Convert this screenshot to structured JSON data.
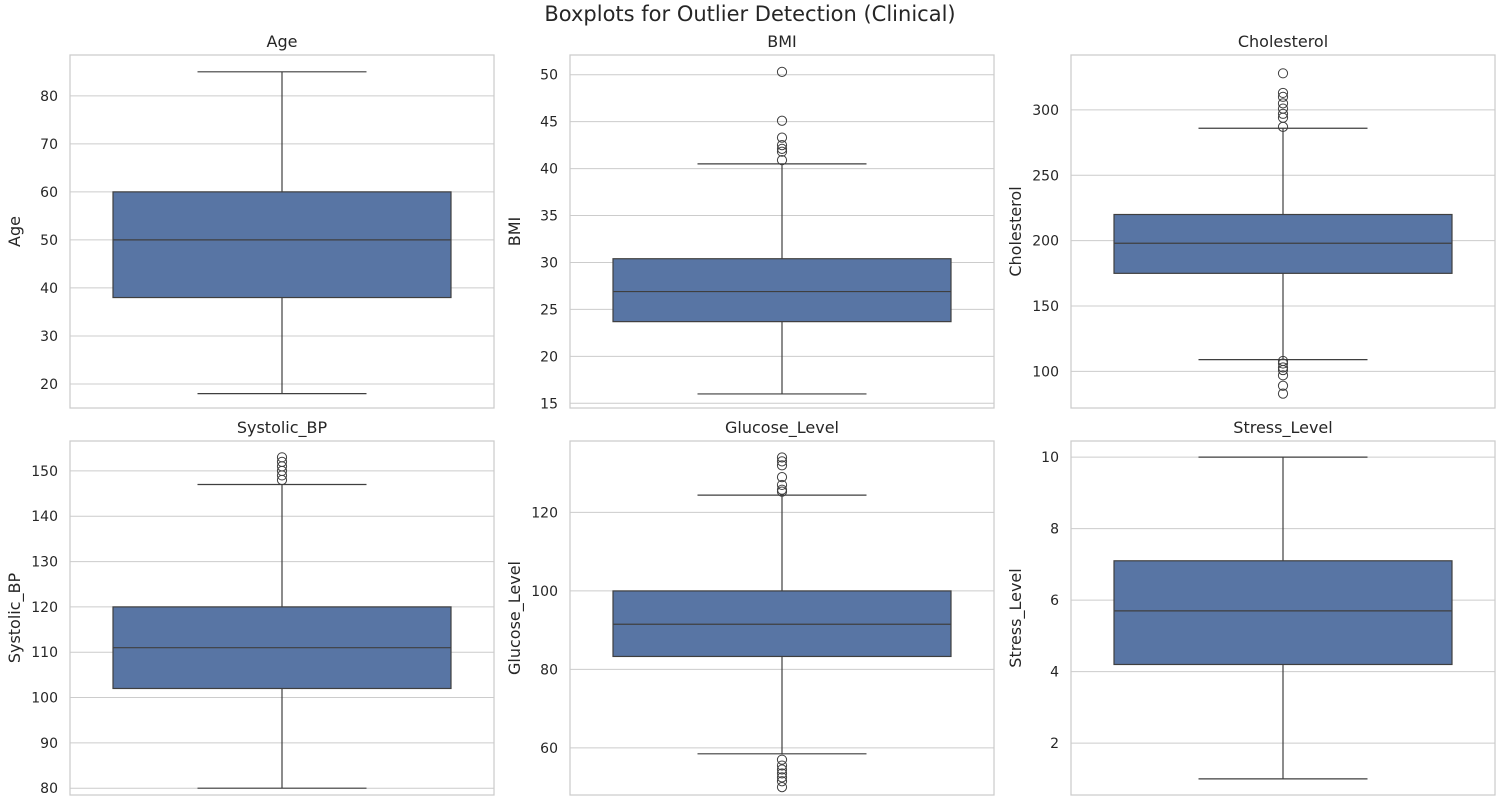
{
  "figure_title": "Boxplots for Outlier Detection (Clinical)",
  "colors": {
    "box_fill": "#5875a4",
    "line": "#3f3f3f",
    "grid": "#cccccc"
  },
  "chart_data": [
    {
      "type": "box",
      "title": "Age",
      "ylabel": "Age",
      "ylim": [
        15,
        88.5
      ],
      "yticks": [
        20,
        30,
        40,
        50,
        60,
        70,
        80
      ],
      "grid": true,
      "stats": {
        "whisker_low": 18,
        "q1": 38,
        "median": 50,
        "q3": 60,
        "whisker_high": 85
      },
      "outliers": []
    },
    {
      "type": "box",
      "title": "BMI",
      "ylabel": "BMI",
      "ylim": [
        14.5,
        52.1
      ],
      "yticks": [
        15,
        20,
        25,
        30,
        35,
        40,
        45,
        50
      ],
      "grid": true,
      "stats": {
        "whisker_low": 16.0,
        "q1": 23.7,
        "median": 26.9,
        "q3": 30.4,
        "whisker_high": 40.5
      },
      "outliers": [
        40.9,
        41.8,
        42.1,
        42.5,
        43.3,
        45.1,
        50.3
      ]
    },
    {
      "type": "box",
      "title": "Cholesterol",
      "ylabel": "Cholesterol",
      "ylim": [
        72,
        342
      ],
      "yticks": [
        100,
        150,
        200,
        250,
        300
      ],
      "grid": true,
      "stats": {
        "whisker_low": 109,
        "q1": 175,
        "median": 198,
        "q3": 220,
        "whisker_high": 286
      },
      "outliers": [
        83,
        89,
        97,
        101,
        103,
        106,
        108,
        287,
        294,
        297,
        301,
        305,
        310,
        313,
        328
      ]
    },
    {
      "type": "box",
      "title": "Systolic_BP",
      "ylabel": "Systolic_BP",
      "ylim": [
        78.5,
        156.6
      ],
      "yticks": [
        80,
        90,
        100,
        110,
        120,
        130,
        140,
        150
      ],
      "grid": true,
      "stats": {
        "whisker_low": 80,
        "q1": 102,
        "median": 111,
        "q3": 120,
        "whisker_high": 147
      },
      "outliers": [
        148,
        149,
        150,
        151,
        152,
        153
      ]
    },
    {
      "type": "box",
      "title": "Glucose_Level",
      "ylabel": "Glucose_Level",
      "ylim": [
        48,
        138.2
      ],
      "yticks": [
        60,
        80,
        100,
        120
      ],
      "grid": true,
      "stats": {
        "whisker_low": 58.5,
        "q1": 83.3,
        "median": 91.5,
        "q3": 100,
        "whisker_high": 124.4
      },
      "outliers": [
        50,
        51.5,
        52.5,
        53.5,
        54.5,
        55.5,
        57,
        125.3,
        125.8,
        127,
        129,
        132,
        133,
        134
      ]
    },
    {
      "type": "box",
      "title": "Stress_Level",
      "ylabel": "Stress_Level",
      "ylim": [
        0.55,
        10.45
      ],
      "yticks": [
        2,
        4,
        6,
        8,
        10
      ],
      "grid": true,
      "stats": {
        "whisker_low": 1.0,
        "q1": 4.2,
        "median": 5.7,
        "q3": 7.1,
        "whisker_high": 10.0
      },
      "outliers": []
    }
  ]
}
